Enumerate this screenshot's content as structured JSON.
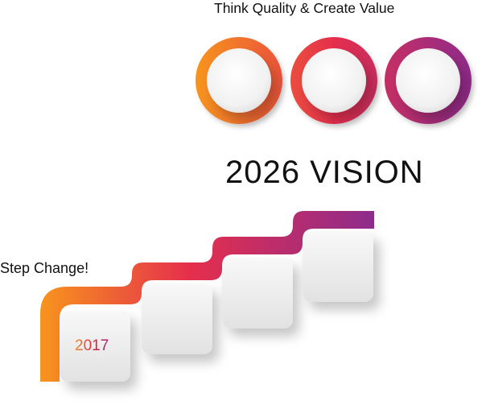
{
  "header": {
    "tagline": "Think Quality & Create Value"
  },
  "vision": {
    "title": "2026 VISION"
  },
  "steps": {
    "label": "Step Change!",
    "items": [
      {
        "year": "2017"
      },
      {
        "year": ""
      },
      {
        "year": ""
      },
      {
        "year": ""
      }
    ]
  },
  "colors": {
    "gradient_start": "#f7941d",
    "gradient_mid": "#e02a47",
    "gradient_end": "#8e2c8c",
    "card_fill": "#ececec"
  }
}
